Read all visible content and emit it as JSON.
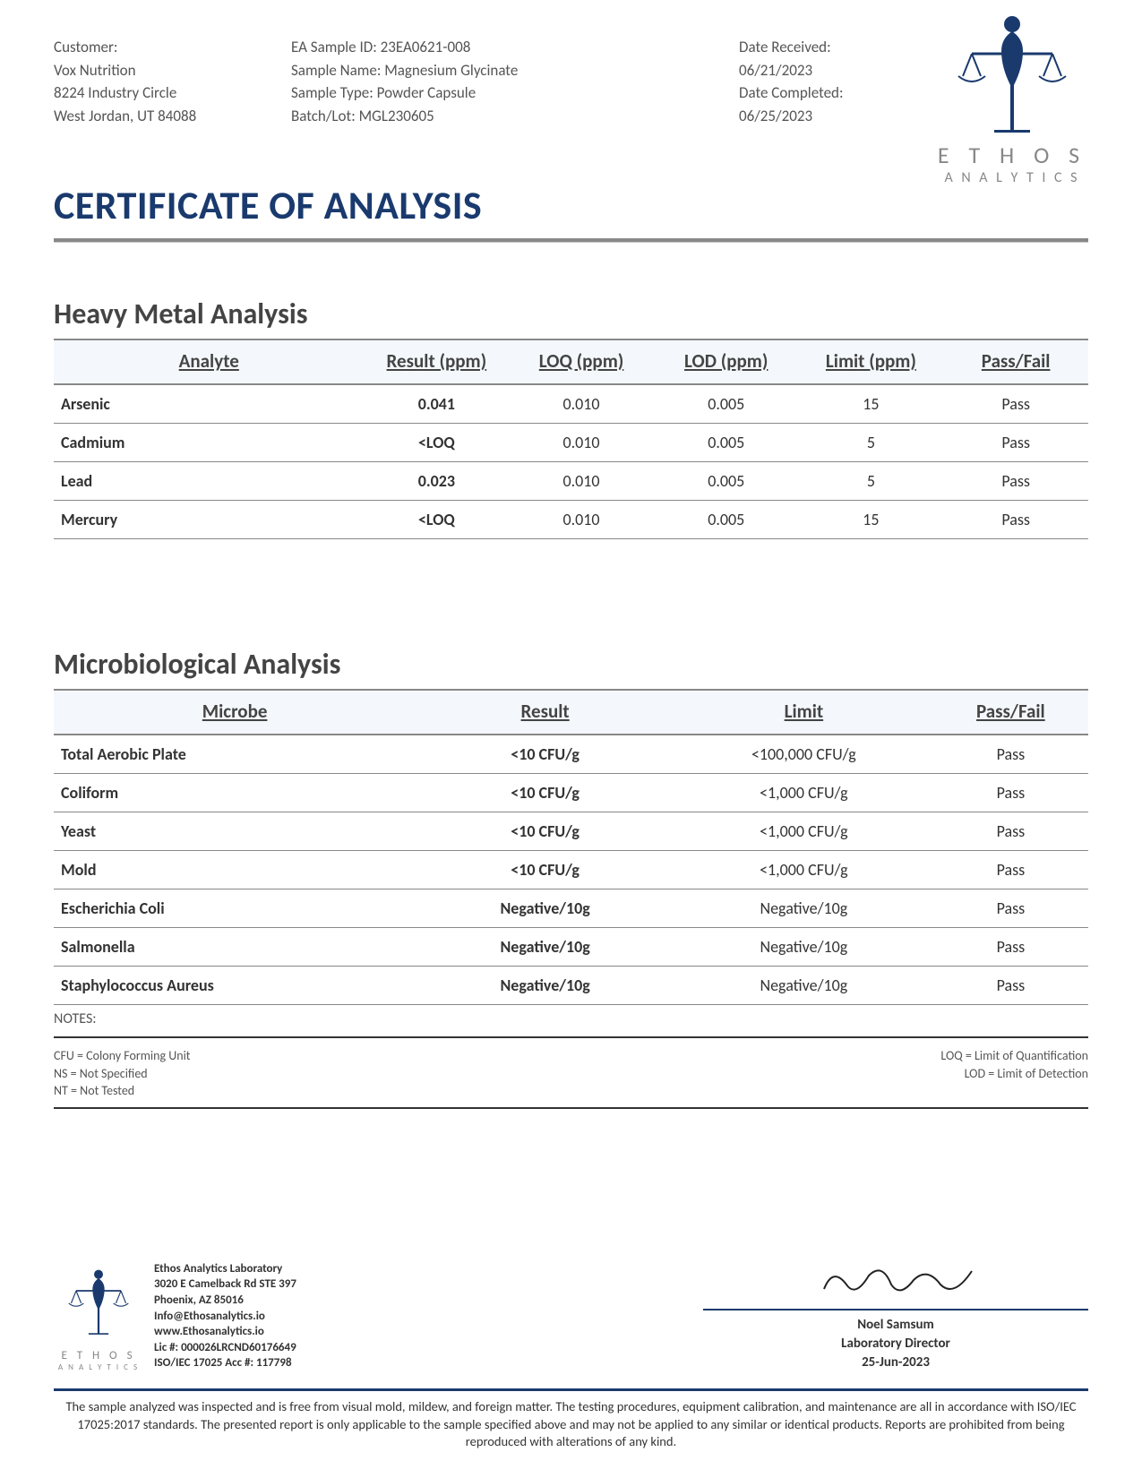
{
  "header": {
    "customer_label": "Customer:",
    "customer_name": "Vox Nutrition",
    "customer_addr1": "8224 Industry Circle",
    "customer_addr2": "West Jordan, UT 84088",
    "sample_id_label": "EA Sample ID: ",
    "sample_id": "23EA0621-008",
    "sample_name_label": "Sample Name: ",
    "sample_name": "Magnesium Glycinate",
    "sample_type_label": "Sample Type: ",
    "sample_type": "Powder Capsule",
    "batch_label": "Batch/Lot: ",
    "batch": "MGL230605",
    "date_received_label": "Date Received:",
    "date_received": "06/21/2023",
    "date_completed_label": "Date Completed:",
    "date_completed": "06/25/2023"
  },
  "logo": {
    "line1": "E T H O S",
    "line2": "A N A L Y T I C S"
  },
  "title": "CERTIFICATE OF ANALYSIS",
  "heavy_metal": {
    "title": "Heavy Metal Analysis",
    "columns": [
      "Analyte",
      "Result (ppm)",
      "LOQ (ppm)",
      "LOD (ppm)",
      "Limit (ppm)",
      "Pass/Fail"
    ],
    "rows": [
      [
        "Arsenic",
        "0.041",
        "0.010",
        "0.005",
        "15",
        "Pass"
      ],
      [
        "Cadmium",
        "<LOQ",
        "0.010",
        "0.005",
        "5",
        "Pass"
      ],
      [
        "Lead",
        "0.023",
        "0.010",
        "0.005",
        "5",
        "Pass"
      ],
      [
        "Mercury",
        "<LOQ",
        "0.010",
        "0.005",
        "15",
        "Pass"
      ]
    ]
  },
  "microbio": {
    "title": "Microbiological Analysis",
    "columns": [
      "Microbe",
      "Result",
      "Limit",
      "Pass/Fail"
    ],
    "rows": [
      [
        "Total Aerobic Plate",
        "<10 CFU/g",
        "<100,000 CFU/g",
        "Pass"
      ],
      [
        "Coliform",
        "<10 CFU/g",
        "<1,000 CFU/g",
        "Pass"
      ],
      [
        "Yeast",
        "<10 CFU/g",
        "<1,000 CFU/g",
        "Pass"
      ],
      [
        "Mold",
        "<10 CFU/g",
        "<1,000 CFU/g",
        "Pass"
      ],
      [
        "Escherichia Coli",
        "Negative/10g",
        "Negative/10g",
        "Pass"
      ],
      [
        "Salmonella",
        "Negative/10g",
        "Negative/10g",
        "Pass"
      ],
      [
        "Staphylococcus Aureus",
        "Negative/10g",
        "Negative/10g",
        "Pass"
      ]
    ]
  },
  "notes": {
    "label": "NOTES:",
    "left": [
      "CFU = Colony Forming Unit",
      "NS = Not Specified",
      "NT = Not Tested"
    ],
    "right": [
      "LOQ = Limit of Quantification",
      "LOD = Limit of Detection"
    ]
  },
  "footer": {
    "lab_name": "Ethos Analytics Laboratory",
    "lab_addr1": "3020 E Camelback Rd STE 397",
    "lab_addr2": "Phoenix, AZ 85016",
    "lab_email": "Info@Ethosanalytics.io",
    "lab_web": "www.Ethosanalytics.io",
    "lab_lic": "Lic #: 000026LRCND60176649",
    "lab_acc": "ISO/IEC 17025 Acc #: 117798",
    "signer_name": "Noel Samsum",
    "signer_title": "Laboratory Director",
    "sign_date": "25-Jun-2023",
    "disclaimer": "The sample analyzed was inspected and is free from visual mold, mildew, and foreign matter. The testing procedures, equipment calibration, and maintenance are all in accordance with ISO/IEC 17025:2017 standards. The presented report is only applicable to the sample specified above and may not be applied to any similar or identical products. Reports are prohibited from being reproduced with alterations of any kind."
  }
}
